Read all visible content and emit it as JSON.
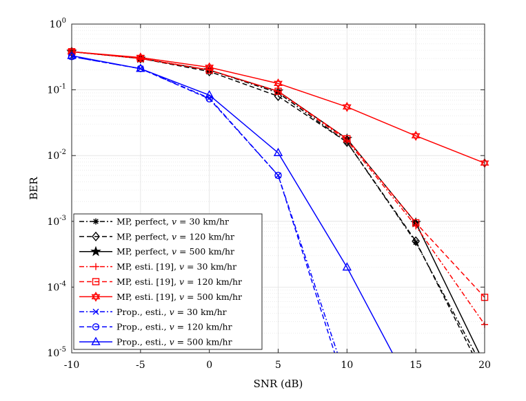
{
  "chart_data": {
    "type": "line",
    "xlabel": "SNR (dB)",
    "ylabel": "BER",
    "xlim": [
      -10,
      20
    ],
    "ylim": [
      1e-05,
      1
    ],
    "yscale": "log",
    "grid": true,
    "minor_grid": true,
    "xticks": [
      -10,
      -5,
      0,
      5,
      10,
      15,
      20
    ],
    "xtick_labels": [
      "-10",
      "-5",
      "0",
      "5",
      "10",
      "15",
      "20"
    ],
    "yticks": [
      {
        "value": 1,
        "base": "10",
        "exp": "0"
      },
      {
        "value": 0.1,
        "base": "10",
        "exp": "-1"
      },
      {
        "value": 0.01,
        "base": "10",
        "exp": "-2"
      },
      {
        "value": 0.001,
        "base": "10",
        "exp": "-3"
      },
      {
        "value": 0.0001,
        "base": "10",
        "exp": "-4"
      },
      {
        "value": 1e-05,
        "base": "10",
        "exp": "-5"
      }
    ],
    "legend_position": "bottom-left",
    "series": [
      {
        "name": "MP, perfect, v = 30 km/hr",
        "label_prefix": "MP, perfect, ",
        "label_var": "v",
        "label_suffix": " = 30 km/hr",
        "color": "#000000",
        "dash": "dashdot",
        "marker": "asterisk",
        "x": [
          -10,
          -5,
          0,
          5,
          10,
          15,
          19.3
        ],
        "y": [
          0.38,
          0.3,
          0.2,
          0.09,
          0.016,
          0.00048,
          1e-05
        ]
      },
      {
        "name": "MP, perfect, v = 120 km/hr",
        "label_prefix": "MP, perfect, ",
        "label_var": "v",
        "label_suffix": " = 120 km/hr",
        "color": "#000000",
        "dash": "dashed",
        "marker": "diamond",
        "x": [
          -10,
          -5,
          0,
          5,
          10,
          15,
          19.1
        ],
        "y": [
          0.38,
          0.3,
          0.19,
          0.08,
          0.016,
          0.0005,
          1e-05
        ]
      },
      {
        "name": "MP, perfect, v = 500 km/hr",
        "label_prefix": "MP, perfect, ",
        "label_var": "v",
        "label_suffix": " = 500 km/hr",
        "color": "#000000",
        "dash": "solid",
        "marker": "star",
        "x": [
          -10,
          -5,
          0,
          5,
          10,
          15,
          19.6
        ],
        "y": [
          0.38,
          0.3,
          0.2,
          0.095,
          0.018,
          0.00095,
          1e-05
        ]
      },
      {
        "name": "MP, esti. [19], v = 30 km/hr",
        "label_prefix": "MP, esti. [19], ",
        "label_var": "v",
        "label_suffix": " = 30 km/hr",
        "color": "#ff0000",
        "dash": "dashdot",
        "marker": "plus",
        "x": [
          -10,
          -5,
          0,
          5,
          10,
          15,
          20
        ],
        "y": [
          0.38,
          0.3,
          0.2,
          0.095,
          0.017,
          0.00085,
          2.7e-05
        ]
      },
      {
        "name": "MP, esti. [19], v = 120 km/hr",
        "label_prefix": "MP, esti. [19], ",
        "label_var": "v",
        "label_suffix": " = 120 km/hr",
        "color": "#ff0000",
        "dash": "dashed",
        "marker": "square",
        "x": [
          -10,
          -5,
          0,
          5,
          10,
          15,
          20
        ],
        "y": [
          0.38,
          0.3,
          0.2,
          0.095,
          0.018,
          0.00095,
          7e-05
        ]
      },
      {
        "name": "MP, esti. [19], v = 500 km/hr",
        "label_prefix": "MP, esti. [19], ",
        "label_var": "v",
        "label_suffix": " = 500 km/hr",
        "color": "#ff0000",
        "dash": "solid",
        "marker": "hexagram",
        "x": [
          -10,
          -5,
          0,
          5,
          10,
          15,
          20
        ],
        "y": [
          0.38,
          0.31,
          0.22,
          0.125,
          0.055,
          0.02,
          0.0077
        ]
      },
      {
        "name": "Prop., esti., v = 30 km/hr",
        "label_prefix": "Prop., esti., ",
        "label_var": "v",
        "label_suffix": " = 30 km/hr",
        "color": "#0000ff",
        "dash": "dashdot",
        "marker": "x",
        "x": [
          -10,
          -5,
          0,
          5,
          9.3
        ],
        "y": [
          0.32,
          0.21,
          0.075,
          0.005,
          1e-05
        ]
      },
      {
        "name": "Prop., esti., v = 120 km/hr",
        "label_prefix": "Prop., esti., ",
        "label_var": "v",
        "label_suffix": " = 120 km/hr",
        "color": "#0000ff",
        "dash": "dashed",
        "marker": "circle",
        "x": [
          -10,
          -5,
          0,
          5,
          9.1
        ],
        "y": [
          0.32,
          0.21,
          0.073,
          0.005,
          1e-05
        ]
      },
      {
        "name": "Prop., esti., v = 500 km/hr",
        "label_prefix": "Prop., esti., ",
        "label_var": "v",
        "label_suffix": " = 500 km/hr",
        "color": "#0000ff",
        "dash": "solid",
        "marker": "triangle",
        "x": [
          -10,
          -5,
          0,
          5,
          10,
          13.3
        ],
        "y": [
          0.33,
          0.21,
          0.083,
          0.011,
          0.0002,
          1e-05
        ]
      }
    ]
  }
}
